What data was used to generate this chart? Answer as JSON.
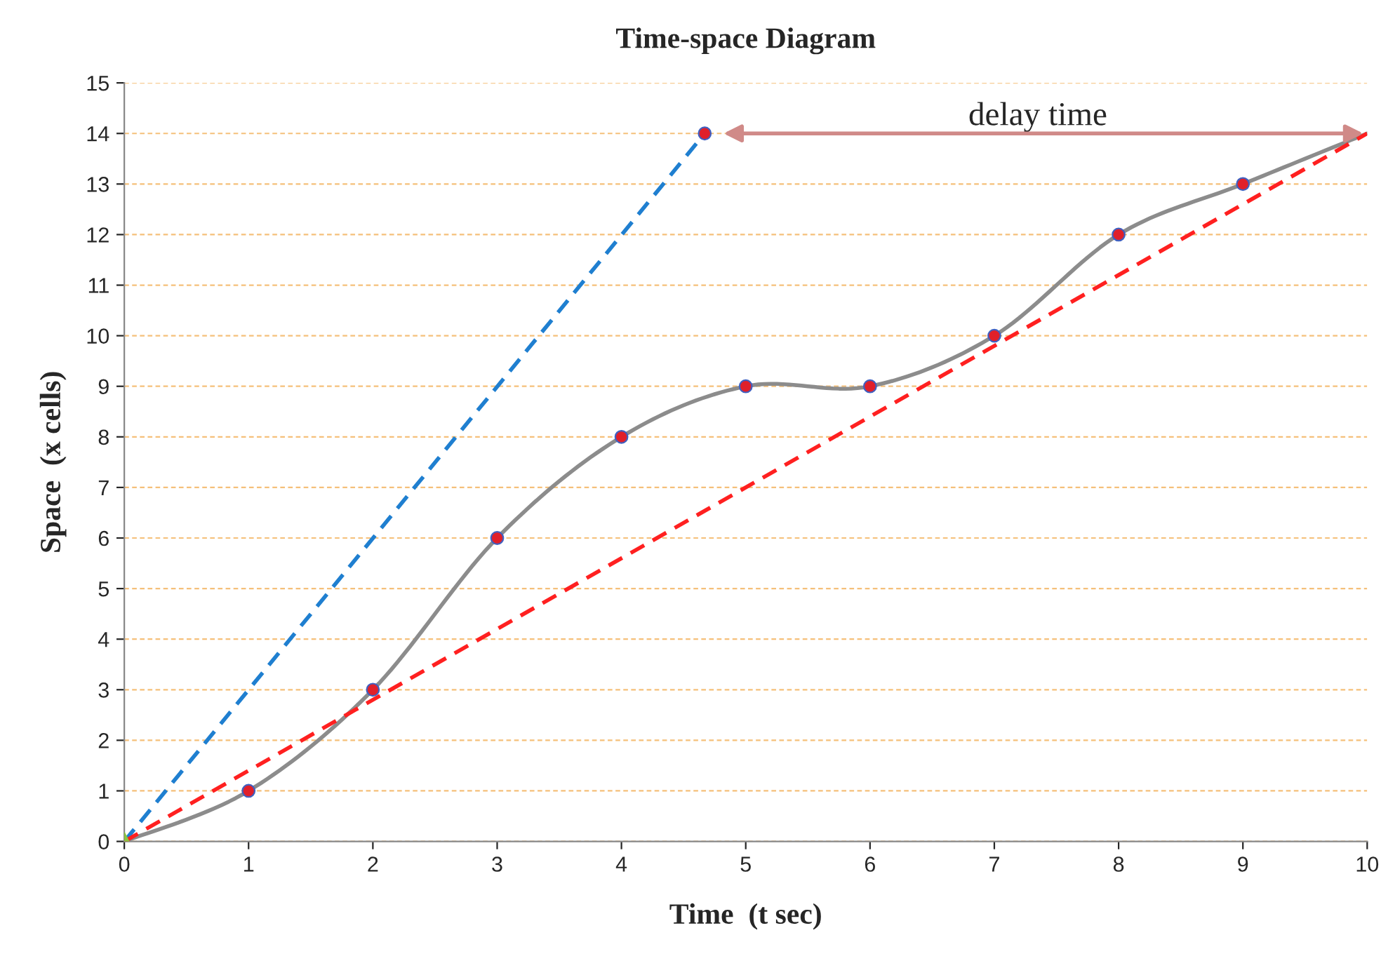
{
  "chart_data": {
    "type": "line",
    "title": "Time-space Diagram",
    "xlabel": "Time  (t sec)",
    "ylabel": "Space  (x cells)",
    "series": [
      {
        "color": "#8c8c8c",
        "x": [
          0,
          1,
          2,
          3,
          4,
          5,
          6,
          7,
          8,
          9,
          10
        ],
        "values": [
          0,
          1,
          3,
          6,
          8,
          9,
          9,
          10,
          12,
          13,
          14
        ],
        "marker": "none",
        "line_style": "solid"
      },
      {
        "type": "line",
        "color": "#1f7fd0",
        "x": [
          0,
          4.67
        ],
        "values": [
          0,
          14
        ],
        "marker": "none",
        "line_style": "dashed"
      },
      {
        "type": "line",
        "color": "#ff2020",
        "x": [
          0,
          10
        ],
        "values": [
          0,
          14
        ],
        "marker": "none",
        "line_style": "dashed"
      },
      {
        "type": "scatter",
        "color": "#e0202a",
        "x": [
          1,
          2,
          3,
          4,
          5,
          6,
          7,
          8,
          9,
          4.67
        ],
        "values": [
          1,
          3,
          6,
          8,
          9,
          9,
          10,
          12,
          13,
          14
        ],
        "marker": "circle"
      },
      {
        "type": "scatter",
        "color": "#8cc63f",
        "x": [
          0
        ],
        "values": [
          0
        ],
        "marker": "triangle"
      }
    ],
    "annotations": [
      "delay time"
    ],
    "xlim": [
      0,
      10
    ],
    "xticks": [
      0,
      1,
      2,
      3,
      4,
      5,
      6,
      7,
      8,
      9,
      10
    ],
    "ylim": [
      0,
      15
    ],
    "yticks": [
      0,
      1,
      2,
      3,
      4,
      5,
      6,
      7,
      8,
      9,
      10,
      11,
      12,
      13,
      14,
      15
    ],
    "grid": "y",
    "legend": false
  }
}
